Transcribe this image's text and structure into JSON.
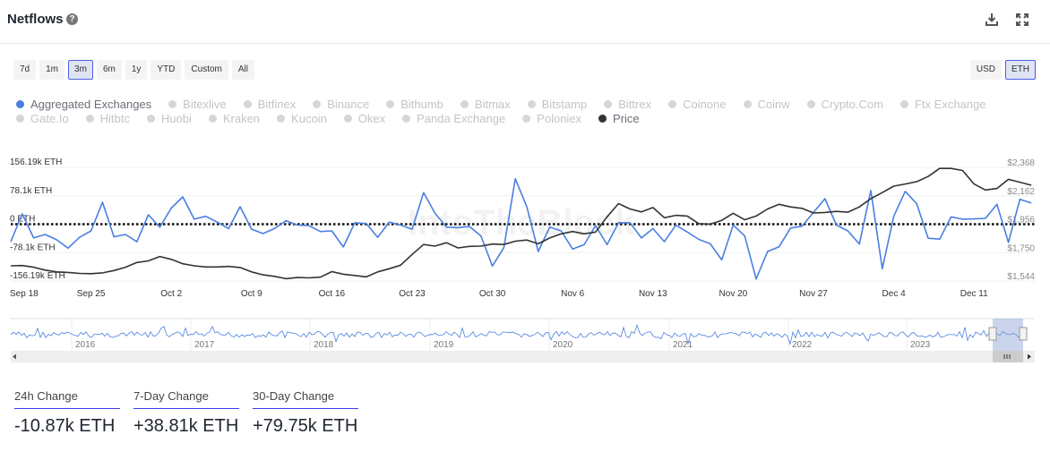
{
  "header": {
    "title": "Netflows",
    "help_icon": "question-circle-icon",
    "download_icon": "download-icon",
    "expand_icon": "fullscreen-icon"
  },
  "ranges": [
    "7d",
    "1m",
    "3m",
    "6m",
    "1y",
    "YTD",
    "Custom",
    "All"
  ],
  "active_range": "3m",
  "currencies": [
    "USD",
    "ETH"
  ],
  "active_currency": "ETH",
  "legend": [
    {
      "label": "Aggregated Exchanges",
      "color": "#4a7fe0",
      "on": true
    },
    {
      "label": "Bitexlive",
      "on": false
    },
    {
      "label": "Bitfinex",
      "on": false
    },
    {
      "label": "Binance",
      "on": false
    },
    {
      "label": "Bithumb",
      "on": false
    },
    {
      "label": "Bitmax",
      "on": false
    },
    {
      "label": "Bitstamp",
      "on": false
    },
    {
      "label": "Bittrex",
      "on": false
    },
    {
      "label": "Coinone",
      "on": false
    },
    {
      "label": "Coinw",
      "on": false
    },
    {
      "label": "Crypto.Com",
      "on": false
    },
    {
      "label": "Ftx Exchange",
      "on": false
    },
    {
      "label": "Gate.Io",
      "on": false
    },
    {
      "label": "Hitbtc",
      "on": false
    },
    {
      "label": "Huobi",
      "on": false
    },
    {
      "label": "Kraken",
      "on": false
    },
    {
      "label": "Kucoin",
      "on": false
    },
    {
      "label": "Okex",
      "on": false
    },
    {
      "label": "Panda Exchange",
      "on": false
    },
    {
      "label": "Poloniex",
      "on": false
    },
    {
      "label": "Price",
      "color": "#333333",
      "on": true
    }
  ],
  "chart_data": {
    "type": "line",
    "watermark": "IntoTheBlock",
    "x_start": "2023-09-18",
    "x_end": "2023-12-16",
    "x_tick_labels": [
      "Sep 18",
      "Sep 25",
      "Oct 2",
      "Oct 9",
      "Oct 16",
      "Oct 23",
      "Oct 30",
      "Nov 6",
      "Nov 13",
      "Nov 20",
      "Nov 27",
      "Dec 4",
      "Dec 11"
    ],
    "y_left": {
      "ticks": [
        "156.19k ETH",
        "78.1k ETH",
        "0 ETH",
        "-78.1k ETH",
        "-156.19k ETH"
      ],
      "range_k": [
        -156.19,
        156.19
      ]
    },
    "y_right": {
      "ticks": [
        "$2,368",
        "$2,162",
        "$1,956",
        "$1,750",
        "$1,544"
      ],
      "range": [
        1544,
        2368
      ]
    },
    "grid": true,
    "zero_line": "dotted",
    "series": [
      {
        "name": "Aggregated Exchanges",
        "axis": "left",
        "unit": "k ETH",
        "color": "#4a7fe0",
        "values": [
          -48.3,
          28.2,
          -37.8,
          -28.2,
          -42.7,
          -66.0,
          -36.2,
          -18.5,
          60.4,
          -34.6,
          -28.2,
          -48.3,
          25.8,
          -8.1,
          44.3,
          74.9,
          13.7,
          21.7,
          5.6,
          -12.1,
          48.3,
          -13.7,
          -25.8,
          -12.1,
          9.7,
          -2.4,
          -4.0,
          -20.1,
          -18.5,
          -62.8,
          4.0,
          1.6,
          -36.2,
          5.6,
          -2.4,
          -13.7,
          86.9,
          29.8,
          -8.1,
          -9.7,
          -6.4,
          -32.2,
          -115.1,
          -64.4,
          124.8,
          48.3,
          -74.9,
          -8.1,
          -18.5,
          -68.4,
          -56.4,
          -4.0,
          -56.4,
          4.0,
          4.0,
          -37.8,
          -12.1,
          -48.3,
          -2.4,
          -21.7,
          -41.9,
          -53.9,
          -98.2,
          -2.4,
          -32.2,
          -150.5,
          -74.9,
          -62.0,
          -10.5,
          -5.6,
          32.2,
          70.0,
          -2.4,
          -18.5,
          -54.7,
          92.6,
          -122.4,
          21.7,
          90.2,
          56.4,
          -38.6,
          -41.1,
          20.1,
          13.7,
          14.5,
          16.1,
          54.7,
          -49.9,
          68.4,
          58.0
        ]
      },
      {
        "name": "Price",
        "axis": "right",
        "unit": "USD",
        "color": "#333333",
        "values": [
          1654,
          1656,
          1644,
          1623,
          1610,
          1606,
          1599,
          1597,
          1603,
          1620,
          1644,
          1678,
          1690,
          1722,
          1701,
          1669,
          1654,
          1646,
          1646,
          1650,
          1642,
          1610,
          1589,
          1578,
          1561,
          1569,
          1567,
          1572,
          1612,
          1593,
          1584,
          1574,
          1610,
          1633,
          1659,
          1737,
          1809,
          1797,
          1822,
          1784,
          1795,
          1797,
          1812,
          1809,
          1833,
          1841,
          1814,
          1856,
          1886,
          1903,
          1886,
          1899,
          2009,
          2105,
          2066,
          2045,
          2077,
          2003,
          2020,
          2015,
          1960,
          1956,
          1984,
          2035,
          1988,
          2015,
          2066,
          2100,
          2081,
          2071,
          2037,
          2041,
          2049,
          2043,
          2081,
          2141,
          2185,
          2232,
          2247,
          2264,
          2302,
          2360,
          2360,
          2345,
          2247,
          2204,
          2215,
          2281,
          2260,
          2238
        ]
      }
    ],
    "navigator": {
      "year_labels": [
        "2016",
        "2017",
        "2018",
        "2019",
        "2020",
        "2021",
        "2022",
        "2023"
      ]
    }
  },
  "stats": [
    {
      "label": "24h Change",
      "value": "-10.87k ETH"
    },
    {
      "label": "7-Day Change",
      "value": "+38.81k ETH"
    },
    {
      "label": "30-Day Change",
      "value": "+79.75k ETH"
    }
  ]
}
